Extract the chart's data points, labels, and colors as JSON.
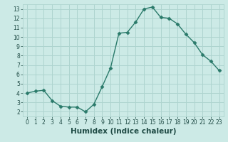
{
  "x": [
    0,
    1,
    2,
    3,
    4,
    5,
    6,
    7,
    8,
    9,
    10,
    11,
    12,
    13,
    14,
    15,
    16,
    17,
    18,
    19,
    20,
    21,
    22,
    23
  ],
  "y": [
    4,
    4.2,
    4.3,
    3.2,
    2.6,
    2.5,
    2.5,
    2.0,
    2.8,
    4.7,
    6.7,
    10.4,
    10.5,
    11.6,
    13.0,
    13.2,
    12.1,
    12.0,
    11.4,
    10.3,
    9.4,
    8.1,
    7.4,
    6.4
  ],
  "line_color": "#2a7a6a",
  "marker": "D",
  "marker_size": 2.5,
  "bg_color": "#cceae6",
  "grid_color": "#aed4cf",
  "xlabel": "Humidex (Indice chaleur)",
  "xlim": [
    -0.5,
    23.5
  ],
  "ylim": [
    1.5,
    13.5
  ],
  "xticks": [
    0,
    1,
    2,
    3,
    4,
    5,
    6,
    7,
    8,
    9,
    10,
    11,
    12,
    13,
    14,
    15,
    16,
    17,
    18,
    19,
    20,
    21,
    22,
    23
  ],
  "yticks": [
    2,
    3,
    4,
    5,
    6,
    7,
    8,
    9,
    10,
    11,
    12,
    13
  ],
  "tick_fontsize": 5.5,
  "xlabel_fontsize": 7.5,
  "label_color": "#1e4a44"
}
